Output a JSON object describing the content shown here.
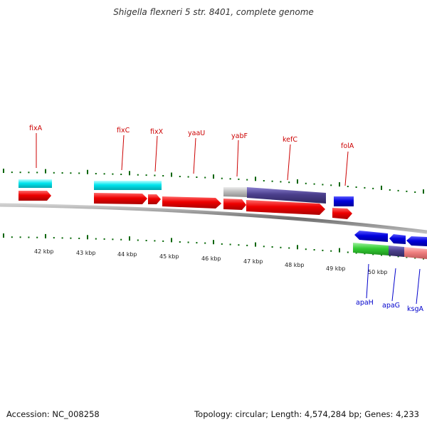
{
  "title": "Shigella flexneri 5 str. 8401, complete genome",
  "accession": "Accession: NC_008258",
  "summary": "Topology: circular; Length: 4,574,284 bp; Genes: 4,233",
  "kbp_ticks": [
    "42 kbp",
    "43 kbp",
    "44 kbp",
    "45 kbp",
    "46 kbp",
    "47 kbp",
    "48 kbp",
    "49 kbp",
    "50 kbp"
  ],
  "labels_top": [
    "fixA",
    "fixC",
    "fixX",
    "yaaU",
    "yabF",
    "kefC",
    "folA"
  ],
  "labels_bottom": [
    "apaH",
    "apaG",
    "ksgA"
  ],
  "colors": {
    "cyan": "#00e5ee",
    "red": "#ee0000",
    "blue": "#0000dd",
    "purple": "#4b3f8c",
    "grey": "#bdbdbd",
    "green": "#33cc33",
    "pink": "#f08080",
    "tick": "#006400",
    "backbone": "#888888",
    "label_top": "#cc0000",
    "label_bottom": "#0000cc"
  }
}
